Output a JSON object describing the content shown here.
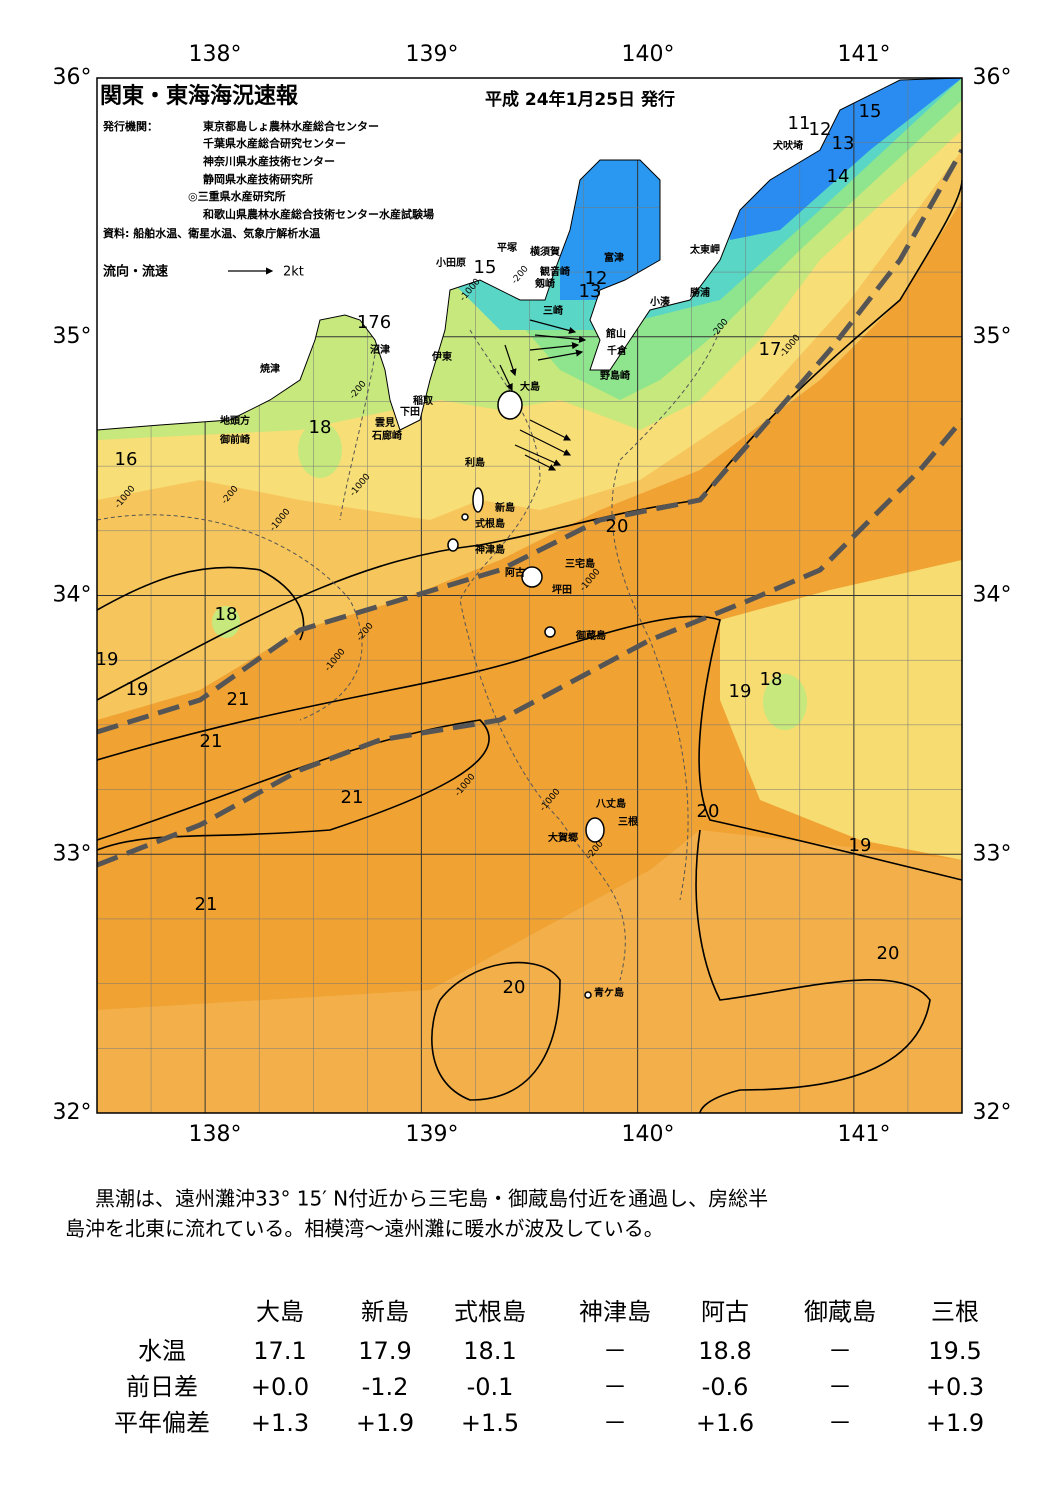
{
  "header": {
    "title": "関東・東海海況速報",
    "date": "平成 24年1月25日 発行"
  },
  "issuers": {
    "label": "発行機関：",
    "names": [
      "東京都島しょ農林水産総合センター",
      "千葉県水産総合研究センター",
      "神奈川県水産技術センター",
      "静岡県水産技術研究所",
      "◎三重県水産研究所",
      "和歌山県農林水産総合技術センター水産試験場"
    ]
  },
  "sources": "資料: 船舶水温、衛星水温、気象庁解析水温",
  "legend": {
    "label": "流向・流速",
    "scale": "2kt"
  },
  "map": {
    "lon_labels": [
      "138°",
      "139°",
      "140°",
      "141°"
    ],
    "lat_labels": [
      "36°",
      "35°",
      "34°",
      "33°",
      "32°"
    ],
    "places": [
      "犬吠埼",
      "太東岬",
      "勝浦",
      "小湊",
      "富津",
      "横須賀",
      "平塚",
      "小田原",
      "観音崎",
      "剱崎",
      "三崎",
      "館山",
      "千倉",
      "野島崎",
      "沼津",
      "伊東",
      "焼津",
      "稲取",
      "下田",
      "雲見",
      "石廊崎",
      "地頭方",
      "御前崎",
      "大島",
      "利島",
      "新島",
      "式根島",
      "神津島",
      "三宅島",
      "阿古",
      "坪田",
      "御蔵島",
      "八丈島",
      "三根",
      "大賀郷",
      "青ケ島"
    ],
    "temp_labels": [
      "15",
      "11",
      "12",
      "13",
      "14",
      "15",
      "12",
      "13",
      "176",
      "17",
      "18",
      "16",
      "20",
      "18",
      "19",
      "19",
      "21",
      "21",
      "19",
      "18",
      "21",
      "20",
      "19",
      "21",
      "20",
      "20"
    ],
    "depth_labels": [
      "-200",
      "-1000",
      "-200",
      "-1000",
      "-200",
      "-1000",
      "-200",
      "-1000",
      "-1000",
      "-1000",
      "-200",
      "-1000",
      "-1000",
      "-1000",
      "-200"
    ]
  },
  "summary": {
    "lines": [
      "黒潮は、遠州灘沖33° 15′ N付近から三宅島・御蔵島付近を通過し、房総半",
      "島沖を北東に流れている。相模湾～遠州灘に暖水が波及している。"
    ]
  },
  "table": {
    "header": [
      "大島",
      "新島",
      "式根島",
      "神津島",
      "阿古",
      "御蔵島",
      "三根"
    ],
    "rows": [
      [
        "水温",
        "17.1",
        "17.9",
        "18.1",
        "－",
        "18.8",
        "－",
        "19.5"
      ],
      [
        "前日差",
        "+0.0",
        "-1.2",
        "-0.1",
        "－",
        "-0.6",
        "－",
        "+0.3"
      ],
      [
        "平年偏差",
        "+1.3",
        "+1.9",
        "+1.5",
        "－",
        "+1.6",
        "－",
        "+1.9"
      ]
    ]
  }
}
